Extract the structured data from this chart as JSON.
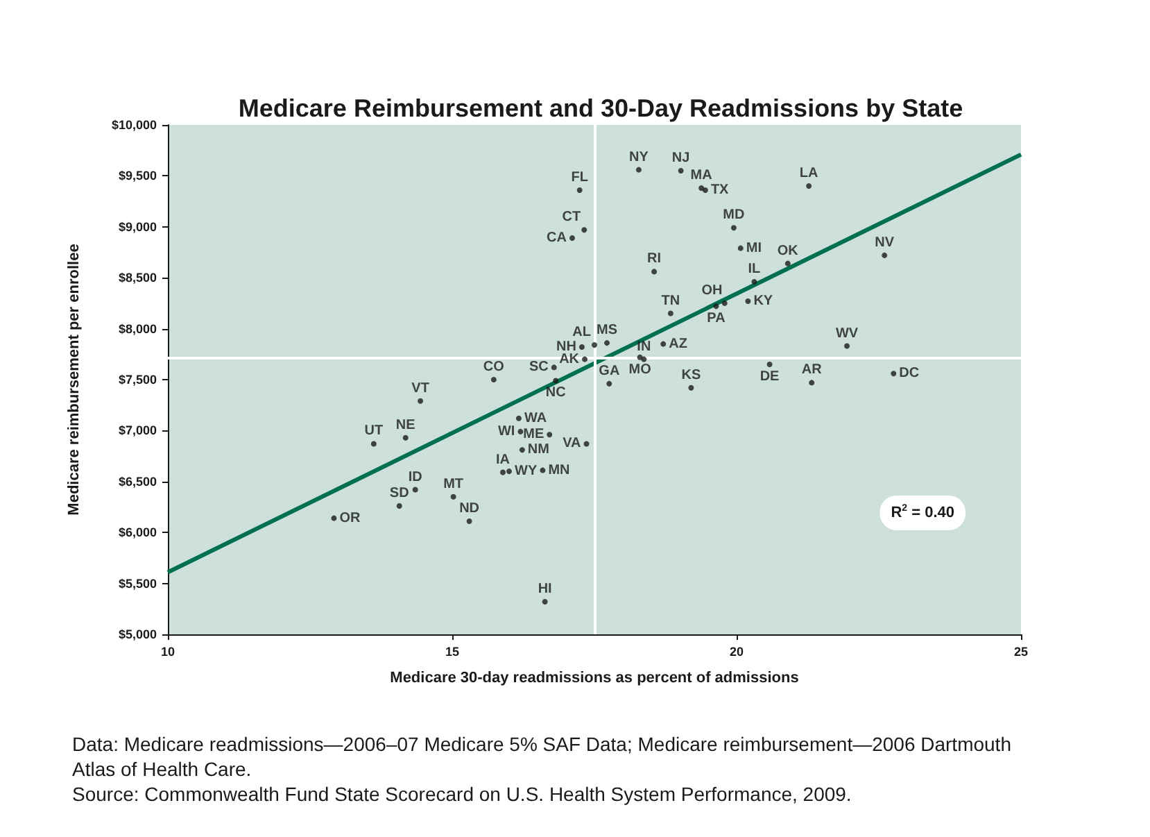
{
  "chart_data": {
    "type": "scatter",
    "title": "Medicare Reimbursement and 30-Day Readmissions by State",
    "xlabel": "Medicare 30-day readmissions as percent of admissions",
    "ylabel": "Medicare reimbursement per enrollee",
    "xlim": [
      10,
      25
    ],
    "xticks": [
      10,
      15,
      20,
      25
    ],
    "ylim": [
      5000,
      10000
    ],
    "yticks": [
      {
        "value": 5000,
        "label": "$5,000"
      },
      {
        "value": 5500,
        "label": "$5,500"
      },
      {
        "value": 6000,
        "label": "$6,000"
      },
      {
        "value": 6500,
        "label": "$6,500"
      },
      {
        "value": 7000,
        "label": "$7,000"
      },
      {
        "value": 7500,
        "label": "$7,500"
      },
      {
        "value": 8000,
        "label": "$8,000"
      },
      {
        "value": 8500,
        "label": "$8,500"
      },
      {
        "value": 9000,
        "label": "$9,000"
      },
      {
        "value": 9500,
        "label": "$9,500"
      },
      {
        "value": 10000,
        "label": "$10,000"
      }
    ],
    "series": [
      {
        "marker": "circle",
        "color": "#1a1a1a",
        "x": [
          17.24,
          17.32,
          17.11,
          18.28,
          19.02,
          19.38,
          19.45,
          21.27,
          19.95,
          20.07,
          20.9,
          22.6,
          18.55,
          20.31,
          19.79,
          19.64,
          20.2,
          18.84,
          17.5,
          17.72,
          18.71,
          18.3,
          18.37,
          21.94,
          20.58,
          22.76,
          21.32,
          19.2,
          17.76,
          17.33,
          17.36,
          17.28,
          16.79,
          16.82,
          15.73,
          14.44,
          16.17,
          16.2,
          16.71,
          13.62,
          14.18,
          16.23,
          16.59,
          15.89,
          16.0,
          14.35,
          15.02,
          14.07,
          12.92,
          15.3,
          16.63
        ],
        "values": [
          9360,
          8970,
          8890,
          9560,
          9550,
          9380,
          9360,
          9400,
          8990,
          8790,
          8640,
          8720,
          8560,
          8460,
          8250,
          8220,
          8270,
          8150,
          7840,
          7860,
          7850,
          7720,
          7700,
          7830,
          7650,
          7560,
          7470,
          7420,
          7460,
          7700,
          6870,
          7820,
          7620,
          7490,
          7500,
          7290,
          7120,
          6990,
          6960,
          6870,
          6930,
          6810,
          6610,
          6590,
          6600,
          6420,
          6350,
          6260,
          6140,
          6110,
          5320
        ]
      },
      {
        "type": "line",
        "color": "#00704f",
        "x": [
          10,
          25
        ],
        "values": [
          5610,
          9710
        ]
      }
    ],
    "ref_lines": [
      {
        "axis": "x",
        "value": 17.51,
        "color": "#ffffff"
      },
      {
        "axis": "y",
        "value": 7710,
        "color": "#ffffff"
      }
    ],
    "annotations": [
      {
        "text": "FL",
        "x": 17.24,
        "y": 9360
      },
      {
        "text": "CT",
        "x": 17.32,
        "y": 8970
      },
      {
        "text": "CA",
        "x": 17.11,
        "y": 8890
      },
      {
        "text": "NY",
        "x": 18.28,
        "y": 9560
      },
      {
        "text": "NJ",
        "x": 19.02,
        "y": 9550
      },
      {
        "text": "MA",
        "x": 19.38,
        "y": 9380
      },
      {
        "text": "TX",
        "x": 19.45,
        "y": 9360
      },
      {
        "text": "LA",
        "x": 21.27,
        "y": 9400
      },
      {
        "text": "MD",
        "x": 19.95,
        "y": 8990
      },
      {
        "text": "MI",
        "x": 20.07,
        "y": 8790
      },
      {
        "text": "OK",
        "x": 20.9,
        "y": 8640
      },
      {
        "text": "NV",
        "x": 22.6,
        "y": 8720
      },
      {
        "text": "RI",
        "x": 18.55,
        "y": 8560
      },
      {
        "text": "IL",
        "x": 20.31,
        "y": 8460
      },
      {
        "text": "OH",
        "x": 19.79,
        "y": 8250
      },
      {
        "text": "PA",
        "x": 19.64,
        "y": 8220
      },
      {
        "text": "KY",
        "x": 20.2,
        "y": 8270
      },
      {
        "text": "TN",
        "x": 18.84,
        "y": 8150
      },
      {
        "text": "AL",
        "x": 17.5,
        "y": 7840
      },
      {
        "text": "MS",
        "x": 17.72,
        "y": 7860
      },
      {
        "text": "AZ",
        "x": 18.71,
        "y": 7850
      },
      {
        "text": "MO",
        "x": 18.3,
        "y": 7720
      },
      {
        "text": "IN",
        "x": 18.37,
        "y": 7700
      },
      {
        "text": "WV",
        "x": 21.94,
        "y": 7830
      },
      {
        "text": "DE",
        "x": 20.58,
        "y": 7650
      },
      {
        "text": "DC",
        "x": 22.76,
        "y": 7560
      },
      {
        "text": "AR",
        "x": 21.32,
        "y": 7470
      },
      {
        "text": "KS",
        "x": 19.2,
        "y": 7420
      },
      {
        "text": "GA",
        "x": 17.76,
        "y": 7460
      },
      {
        "text": "AK",
        "x": 17.33,
        "y": 7700
      },
      {
        "text": "VA",
        "x": 17.36,
        "y": 6870
      },
      {
        "text": "NH",
        "x": 17.28,
        "y": 7820
      },
      {
        "text": "SC",
        "x": 16.79,
        "y": 7620
      },
      {
        "text": "NC",
        "x": 16.82,
        "y": 7490
      },
      {
        "text": "CO",
        "x": 15.73,
        "y": 7500
      },
      {
        "text": "VT",
        "x": 14.44,
        "y": 7290
      },
      {
        "text": "WA",
        "x": 16.17,
        "y": 7120
      },
      {
        "text": "WI",
        "x": 16.2,
        "y": 6990
      },
      {
        "text": "ME",
        "x": 16.71,
        "y": 6960
      },
      {
        "text": "UT",
        "x": 13.62,
        "y": 6870
      },
      {
        "text": "NE",
        "x": 14.18,
        "y": 6930
      },
      {
        "text": "NM",
        "x": 16.23,
        "y": 6810
      },
      {
        "text": "MN",
        "x": 16.59,
        "y": 6610
      },
      {
        "text": "IA",
        "x": 15.89,
        "y": 6590
      },
      {
        "text": "WY",
        "x": 16.0,
        "y": 6600
      },
      {
        "text": "ID",
        "x": 14.35,
        "y": 6420
      },
      {
        "text": "MT",
        "x": 15.02,
        "y": 6350
      },
      {
        "text": "SD",
        "x": 14.07,
        "y": 6260
      },
      {
        "text": "OR",
        "x": 12.92,
        "y": 6140
      },
      {
        "text": "ND",
        "x": 15.3,
        "y": 6110
      },
      {
        "text": "HI",
        "x": 16.63,
        "y": 5320
      },
      "R$^{2}$ = 0.40",
      "Data: Medicare readmissions—2006–07 Medicare 5% SAF Data; Medicare reimbursement—2006 Dartmouth Atlas of Health Care.",
      "Source: Commonwealth Fund State Scorecard on U.S. Health System Performance, 2009."
    ]
  }
}
